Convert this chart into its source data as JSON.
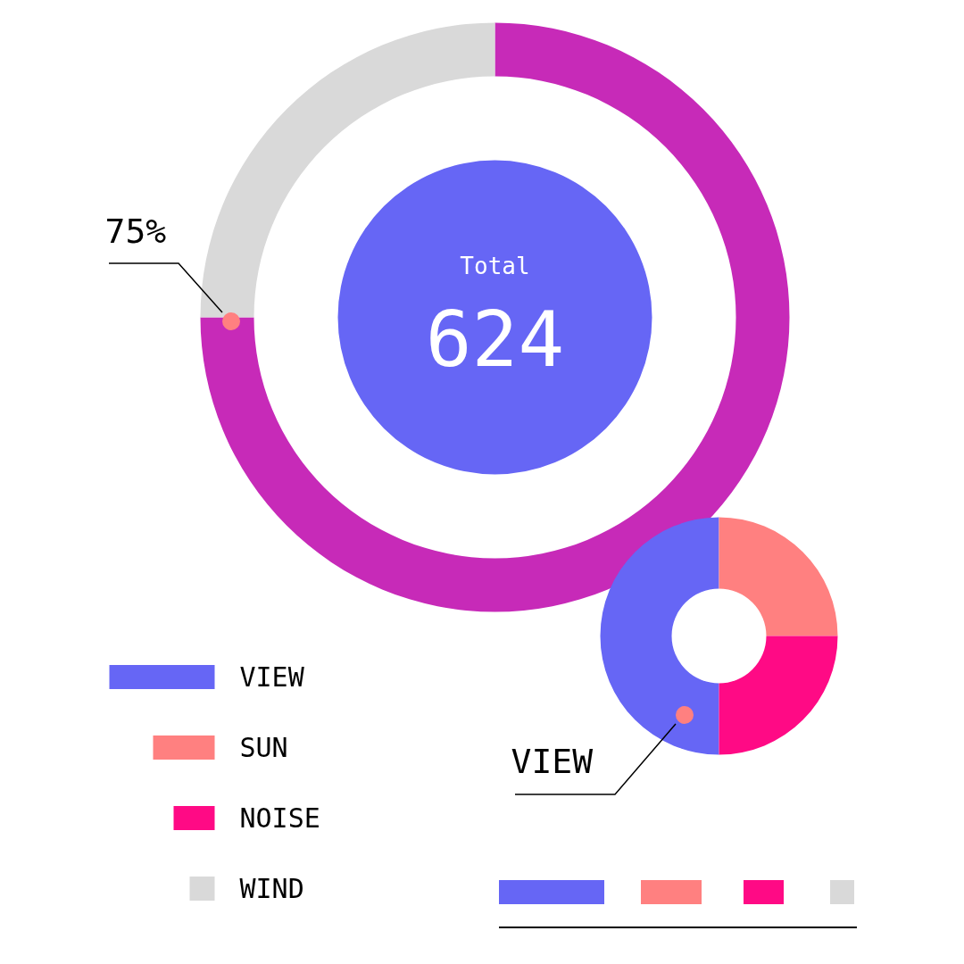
{
  "chart_data": [
    {
      "type": "donut",
      "categories": [
        null,
        null
      ],
      "values": [
        75,
        25
      ],
      "colors": [
        "#c72ab8",
        "#d9d9d9"
      ],
      "annotations": [
        "75%",
        "Total",
        "624"
      ]
    },
    {
      "type": "donut",
      "categories": [
        "VIEW",
        "SUN",
        "NOISE",
        "WIND"
      ],
      "values": [
        50,
        25,
        25,
        0
      ],
      "colors": [
        "#6666f5",
        "#ff8080",
        "#ff0a85",
        "#d9d9d9"
      ],
      "legend": "bottom left",
      "annotations": [
        "VIEW"
      ]
    }
  ]
}
